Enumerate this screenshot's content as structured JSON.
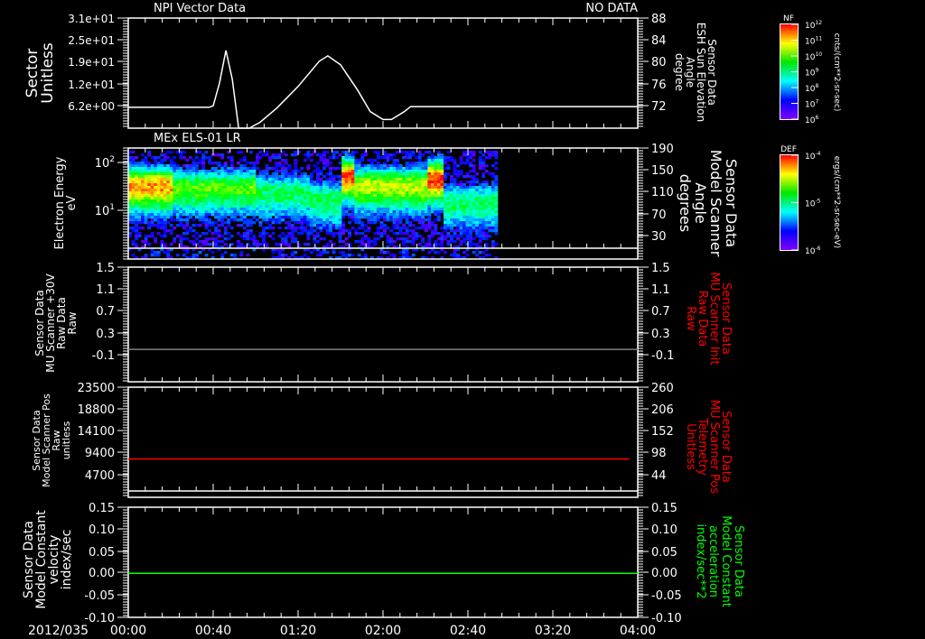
{
  "colors": {
    "axis": "#ffffff",
    "red": "#ff0000",
    "green": "#00ff00",
    "gray": "#808080"
  },
  "time_axis": {
    "date": "2012/035",
    "labels": [
      "00:00",
      "00:40",
      "01:20",
      "02:00",
      "02:40",
      "03:20",
      "04:00"
    ]
  },
  "chart_data": [
    {
      "type": "line",
      "title": "NPI Vector Data",
      "status": "NO DATA",
      "ylabel": [
        "Sector",
        "Unitless"
      ],
      "yticks": [
        "3.1e+01",
        "2.5e+01",
        "1.9e+01",
        "1.2e+01",
        "6.2e+00"
      ],
      "ylim": [
        0.4,
        31
      ],
      "y2label": [
        "Sensor Data",
        "ESH Sun Elevation",
        "Angle",
        "degree"
      ],
      "y2ticks": [
        "88",
        "84",
        "80",
        "76",
        "72"
      ],
      "xlim_minutes": [
        0,
        240
      ],
      "series": [
        {
          "name": "Sector",
          "color": "#ffffff",
          "x": [
            0,
            38,
            40,
            43,
            46,
            49,
            52,
            57,
            62,
            70,
            80,
            90,
            94,
            100,
            108,
            114,
            120,
            124,
            130,
            133,
            240
          ],
          "y": [
            6.2,
            6.2,
            6.6,
            13,
            22,
            14,
            0.4,
            0.4,
            2,
            6,
            12,
            19,
            20.5,
            18,
            11,
            5,
            2.8,
            2.8,
            5,
            6.4,
            6.4
          ]
        }
      ]
    },
    {
      "type": "heatmap",
      "title": "MEx ELS-01 LR",
      "ylabel": [
        "Electron Energy",
        "eV"
      ],
      "yticks": [
        "10",
        "10"
      ],
      "ytick_exponents": [
        "2",
        "1"
      ],
      "y2label": [
        "Sensor Data",
        "Model Scanner",
        "Angle",
        "degrees"
      ],
      "y2ticks": [
        "190",
        "150",
        "110",
        "70",
        "30"
      ],
      "data_end_minutes": 173,
      "log_energy_range": [
        0.2,
        2.25
      ],
      "core_profile": [
        {
          "t0": 0,
          "t1": 20,
          "level": 0.88,
          "logE": 1.55
        },
        {
          "t0": 20,
          "t1": 60,
          "level": 0.62,
          "logE": 1.5
        },
        {
          "t0": 60,
          "t1": 85,
          "level": 0.48,
          "logE": 1.4
        },
        {
          "t0": 85,
          "t1": 100,
          "level": 0.5,
          "logE": 1.25
        },
        {
          "t0": 100,
          "t1": 106,
          "level": 0.95,
          "logE": 1.75
        },
        {
          "t0": 106,
          "t1": 140,
          "level": 0.72,
          "logE": 1.55
        },
        {
          "t0": 140,
          "t1": 148,
          "level": 0.97,
          "logE": 1.7
        },
        {
          "t0": 148,
          "t1": 173,
          "level": 0.48,
          "logE": 1.2
        }
      ],
      "colorbar": {
        "title": "DEF",
        "ticks": [
          "10",
          "10",
          "10"
        ],
        "tick_exponents": [
          "-4",
          "-5",
          "-6"
        ],
        "units": "ergs/(cm**2-sr-sec-eV)"
      }
    },
    {
      "type": "line",
      "ylabel": [
        "Sensor Data",
        "MU Scanner +30V",
        "Raw Data",
        "Raw"
      ],
      "yticks": [
        "1.5",
        "1.1",
        "0.7",
        "0.3",
        "-0.1"
      ],
      "ylim": [
        -0.59,
        1.5
      ],
      "y2label": [
        "Sensor Data",
        "MU Scanner Init",
        "Raw Data",
        "Raw"
      ],
      "y2ticks": [
        "1.5",
        "1.1",
        "0.7",
        "0.3",
        "-0.1"
      ],
      "series": [
        {
          "name": "+30V",
          "color": "#808080",
          "x": [
            0,
            240
          ],
          "y": [
            0.0,
            0.0
          ]
        }
      ]
    },
    {
      "type": "line",
      "ylabel": [
        "Sensor Data",
        "Model Scanner Pos",
        "Raw",
        "unitless"
      ],
      "yticks": [
        "23500",
        "18800",
        "14100",
        "9400",
        "4700"
      ],
      "ylim": [
        -300,
        23500
      ],
      "y2label": [
        "Sensor Data",
        "MU Scanner Pos",
        "Telemetry",
        "Unitless"
      ],
      "y2ticks": [
        "260",
        "206",
        "152",
        "98",
        "44"
      ],
      "series": [
        {
          "name": "Scanner Pos",
          "color": "#ff0000",
          "x": [
            0,
            236
          ],
          "y": [
            8000,
            8000
          ]
        }
      ]
    },
    {
      "type": "line",
      "ylabel": [
        "Sensor Data",
        "Model Constant",
        "velocity",
        "index/sec"
      ],
      "yticks": [
        "0.15",
        "0.10",
        "0.05",
        "0.00",
        "-0.05",
        "-0.10"
      ],
      "ylim": [
        -0.1,
        0.15
      ],
      "y2label": [
        "Sensor Data",
        "Model Constant",
        "acceleration",
        "index/sec**2"
      ],
      "y2ticks": [
        "0.15",
        "0.10",
        "0.05",
        "0.00",
        "-0.05",
        "-0.10"
      ],
      "series": [
        {
          "name": "velocity",
          "color": "#00ff00",
          "x": [
            0,
            240
          ],
          "y": [
            0,
            0
          ]
        }
      ]
    }
  ],
  "colorbar_nf": {
    "title": "NF",
    "ticks": [
      "10",
      "10",
      "10",
      "10",
      "10",
      "10",
      "10"
    ],
    "tick_exponents": [
      "12",
      "11",
      "10",
      "9",
      "8",
      "7",
      "6"
    ],
    "units": "cnts/(cm**2-sr-sec)"
  }
}
